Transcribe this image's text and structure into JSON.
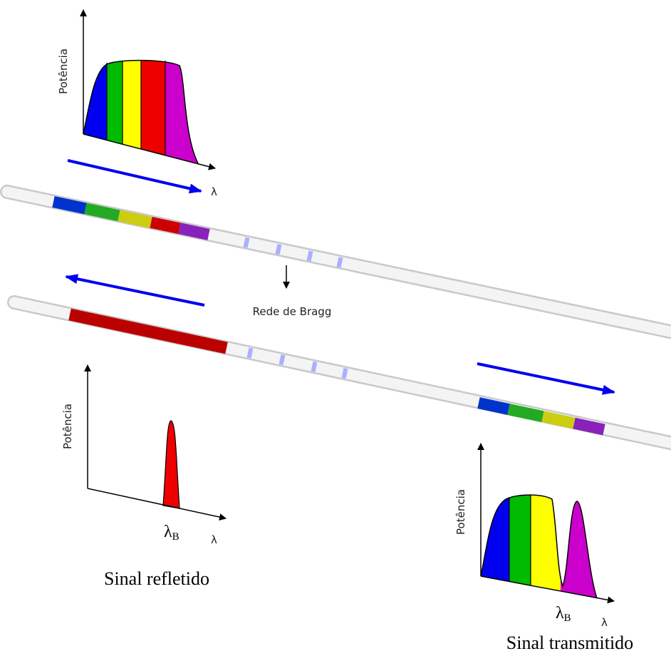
{
  "plots": {
    "input": {
      "y_label": "Potência",
      "x_label": "λ"
    },
    "reflected": {
      "y_label": "Potência",
      "x_label": "λ",
      "marker": {
        "symbol": "λ",
        "subscript": "B"
      },
      "caption": "Sinal refletido"
    },
    "transmitted": {
      "y_label": "Potência",
      "x_label": "λ",
      "marker": {
        "symbol": "λ",
        "subscript": "B"
      },
      "caption": "Sinal transmitido"
    }
  },
  "grating_label": "Rede de Bragg"
}
